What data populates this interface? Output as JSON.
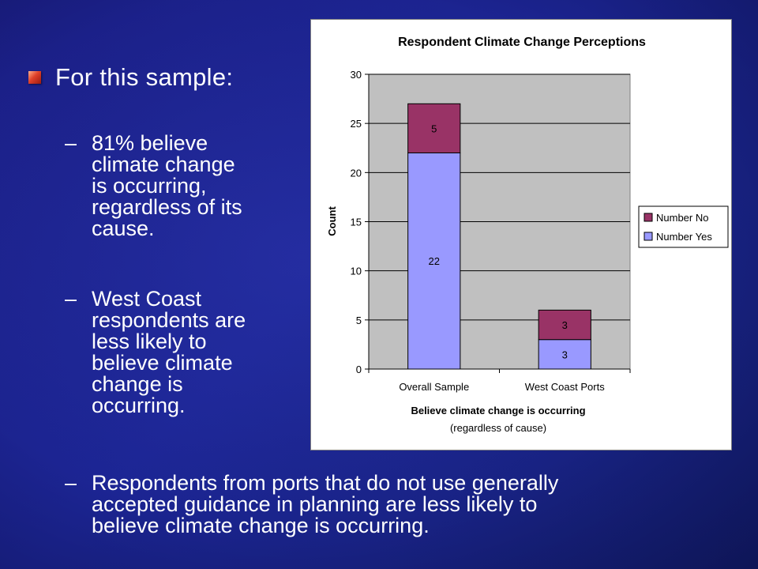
{
  "slide": {
    "heading": "For this sample:",
    "bullet1": "81% believe\nclimate change\nis occurring,\nregardless of its\ncause.",
    "bullet2": "West Coast\nrespondents are\nless likely to\nbelieve climate\nchange is\noccurring.",
    "bullet3": "Respondents from ports that do not use generally\naccepted guidance in planning are less likely to\nbelieve climate change is occurring.",
    "dash": "–"
  },
  "chart_data": {
    "type": "bar",
    "stacked": true,
    "title": "Respondent Climate Change Perceptions",
    "xlabel": "Believe climate change is occurring",
    "xlabel2": "(regardless of cause)",
    "ylabel": "Count",
    "ylim": [
      0,
      30
    ],
    "yticks": [
      0,
      5,
      10,
      15,
      20,
      25,
      30
    ],
    "categories": [
      "Overall Sample",
      "West Coast Ports"
    ],
    "series": [
      {
        "name": "Number Yes",
        "values": [
          22,
          3
        ],
        "color": "#9999ff"
      },
      {
        "name": "Number No",
        "values": [
          5,
          3
        ],
        "color": "#993366"
      }
    ],
    "legend_order": [
      "Number No",
      "Number Yes"
    ],
    "legend": "right",
    "grid": true,
    "plot_background": "#c0c0c0"
  }
}
